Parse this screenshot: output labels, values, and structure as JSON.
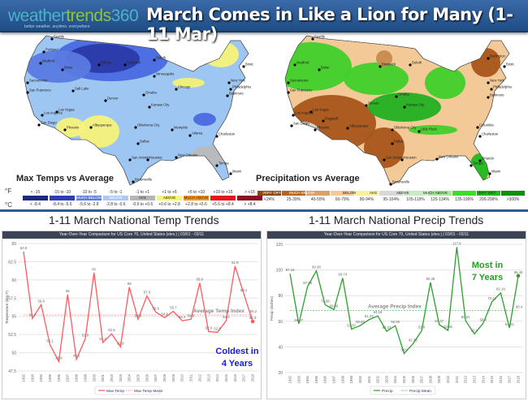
{
  "header": {
    "logo_text_a": "weather",
    "logo_text_b": "trends",
    "logo_text_c": "360",
    "tagline": "better weather. anytime. everywhere",
    "title": "March Comes in Like a Lion for Many (1-11 Mar)"
  },
  "maps": {
    "temp": {
      "label": "Max Temps vs Average",
      "cities": [
        "Seattle",
        "Portland",
        "Medford",
        "Boise",
        "Sacramento",
        "San Francisco",
        "Salt Lake",
        "Las Vegas",
        "Los Angeles",
        "San Diego",
        "Phoenix",
        "Denver",
        "Albuquerque",
        "Billings",
        "Bismarck",
        "Duluth",
        "Minneapolis",
        "Omaha",
        "Kansas City",
        "Oklahoma City",
        "Dallas",
        "San Antonio",
        "Houston",
        "Brownsville",
        "Chicago",
        "Memphis",
        "Atlanta",
        "New Orleans",
        "Tampa",
        "Miami",
        "Charleston",
        "New York",
        "Boston",
        "Philadelphia",
        "Baltimore"
      ],
      "legend": {
        "f_unit": "°F",
        "c_unit": "°C",
        "f": [
          "< -15",
          "-15 to -10",
          "-10 to -5",
          "-5 to -1",
          "-1 to +1",
          "+1 to +5",
          "+5 to +10",
          "+10 to +15",
          "> +15"
        ],
        "c": [
          "< -8.4",
          "-8.4 to -5.6",
          "-5.6 to -2.8",
          "-2.8 to -0.6",
          "-0.6 to +0.6",
          "+0.6 to +2.8",
          "+2.8 to +5.6",
          "+5.6 to +8.4",
          "> +8.4"
        ],
        "names": [
          "",
          "",
          "MUCH BELOW",
          "BELOW",
          "AVG",
          "ABOVE",
          "MUCH ABOVE",
          "",
          ""
        ],
        "colors": [
          "#1d2a7a",
          "#2f3db5",
          "#5a78e0",
          "#a9c9f2",
          "#b5b5b5",
          "#f7f27a",
          "#f7981d",
          "#e8141c",
          "#8c1022"
        ]
      }
    },
    "precip": {
      "label": "Precipitation vs Average",
      "cities": [
        "Seattle",
        "Medford",
        "Boise",
        "Sacramento",
        "San Francisco",
        "Las Vegas",
        "Los Angeles",
        "San Diego",
        "Phoenix",
        "Flagstaff",
        "Albuquerque",
        "Denver",
        "Bismarck",
        "Duluth",
        "Omaha",
        "Kansas City",
        "Oklahoma City",
        "Dallas",
        "San Antonio",
        "Houston",
        "Brownsville",
        "Little Rock",
        "New Orleans",
        "Tampa",
        "Orlando",
        "Miami",
        "Charleston",
        "Columbia",
        "Baltimore",
        "Philadelphia",
        "New York",
        "Boston",
        "Burlington"
      ],
      "legend": {
        "names": [
          "VERY DRY",
          "MUCH BELOW",
          "",
          "BELOW",
          "AVG",
          "ABOVE",
          "MUCH ABOVE",
          "",
          "VERY WET"
        ],
        "pct": [
          "<24%",
          "25-39%",
          "40-59%",
          "60-79%",
          "80-94%",
          "95-104%",
          "105-119%",
          "120-134%",
          "135-199%",
          "200-299%",
          ">300%"
        ],
        "colors": [
          "#8c4a12",
          "#b5651d",
          "#d9a06b",
          "#f6c99a",
          "#f6f0a0",
          "#d8d8d8",
          "#c9ebc3",
          "#a6e89a",
          "#3fdc2a",
          "#1dbb1d",
          "#0e8f10"
        ]
      }
    }
  },
  "charts_section": {
    "temp_title": "1-11 March National Temp Trends",
    "precip_title": "1-11 March National Precip Trends"
  },
  "chart_data": [
    {
      "type": "line",
      "title": "Year-Over-Year Comparison for US Core 70, United States (elev.) | 03/01 - 03/11",
      "ylabel": "Temperature (deg F)",
      "ylim": [
        47.5,
        65
      ],
      "yticks": [
        47.5,
        50,
        52.5,
        55,
        57.5,
        60,
        62.5,
        65
      ],
      "grid": true,
      "legend_position": "bottom",
      "x": [
        1992,
        1993,
        1994,
        1995,
        1996,
        1997,
        1998,
        1999,
        2000,
        2001,
        2002,
        2003,
        2004,
        2005,
        2006,
        2007,
        2008,
        2009,
        2010,
        2011,
        2012,
        2013,
        2014,
        2015,
        2016,
        2017,
        2018
      ],
      "series": [
        {
          "name": "Max Temp",
          "color": "#ff5a5f",
          "values": [
            63.9,
            54.7,
            56.6,
            51.1,
            48.8,
            58,
            49.1,
            51.9,
            61,
            51.4,
            52.6,
            50.8,
            59,
            54.6,
            57.8,
            55.6,
            54.8,
            55.7,
            54.4,
            54.6,
            59.6,
            52.9,
            52.8,
            54.4,
            61.9,
            58.1,
            54.3
          ]
        },
        {
          "name": "Max Temp Mean",
          "color": "#ff9a9a",
          "dashed": true,
          "value": 55.2
        }
      ],
      "annotations": [
        "Average Temp Index",
        "Coldest in 4 Years"
      ],
      "annotation_color": "#1a1ae6"
    },
    {
      "type": "line",
      "title": "Year-Over-Year Comparison for US Core 70, United States (elev.) | 03/01 - 03/11",
      "ylabel": "Precip (inches)",
      "ylim": [
        20,
        120
      ],
      "yticks": [
        20,
        40,
        60,
        80,
        100,
        120
      ],
      "grid": true,
      "legend_position": "bottom",
      "x": [
        1992,
        1993,
        1994,
        1995,
        1996,
        1997,
        1998,
        1999,
        2000,
        2001,
        2002,
        2003,
        2004,
        2005,
        2006,
        2007,
        2008,
        2009,
        2010,
        2011,
        2012,
        2013,
        2014,
        2015,
        2016,
        2017,
        2018
      ],
      "series": [
        {
          "name": "Precip",
          "color": "#2ca02c",
          "values": [
            97.15,
            58.07,
            87.08,
            99.38,
            72.88,
            69.09,
            93.74,
            53.87,
            56.65,
            61.23,
            64.18,
            52.23,
            56.56,
            34.9,
            42.38,
            52.6,
            90.35,
            57.47,
            52.86,
            117.8,
            60.51,
            50.1,
            58.4,
            75.12,
            82.19,
            54.81,
            95.46
          ]
        },
        {
          "name": "Precip Mean",
          "color": "#5cc05c",
          "dashed": true,
          "value": 68.4
        }
      ],
      "annotations": [
        "Average Precip  Index",
        "Most in 7 Years"
      ],
      "annotation_color": "#22a022"
    }
  ]
}
